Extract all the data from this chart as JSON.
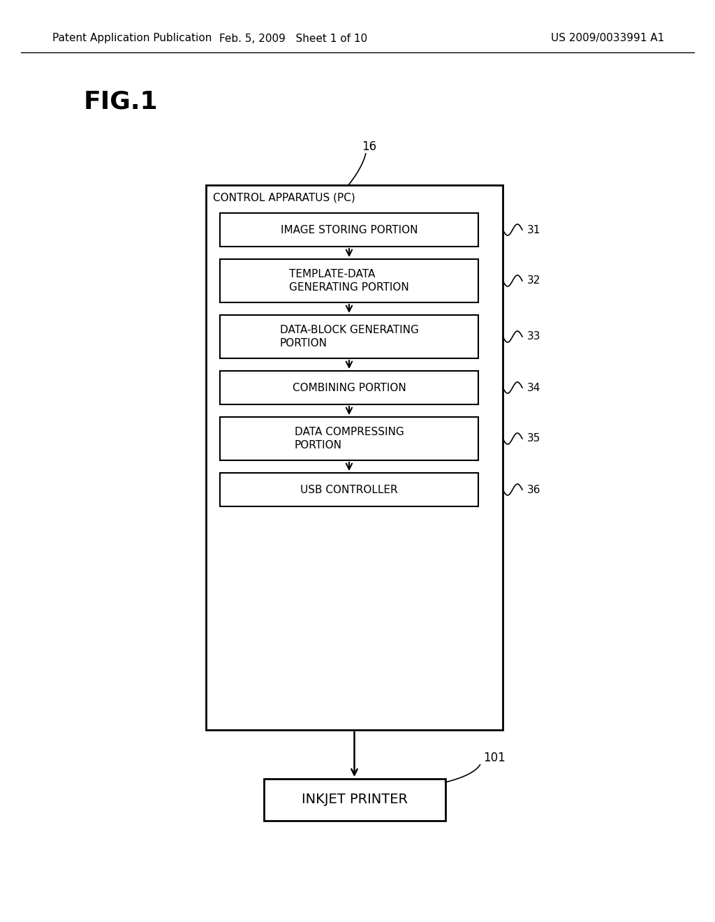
{
  "bg_color": "#ffffff",
  "header_left": "Patent Application Publication",
  "header_mid": "Feb. 5, 2009   Sheet 1 of 10",
  "header_right": "US 2009/0033991 A1",
  "fig_label": "FIG.1",
  "outer_box_label": "CONTROL APPARATUS (PC)",
  "outer_box_ref": "16",
  "inner_boxes": [
    {
      "label": "IMAGE STORING PORTION",
      "ref": "31",
      "multiline": false
    },
    {
      "label": "TEMPLATE-DATA\nGENERATING PORTION",
      "ref": "32",
      "multiline": true
    },
    {
      "label": "DATA-BLOCK GENERATING\nPORTION",
      "ref": "33",
      "multiline": true
    },
    {
      "label": "COMBINING PORTION",
      "ref": "34",
      "multiline": false
    },
    {
      "label": "DATA COMPRESSING\nPORTION",
      "ref": "35",
      "multiline": true
    },
    {
      "label": "USB CONTROLLER",
      "ref": "36",
      "multiline": false
    }
  ],
  "printer_box_label": "INKJET PRINTER",
  "printer_box_ref": "101"
}
